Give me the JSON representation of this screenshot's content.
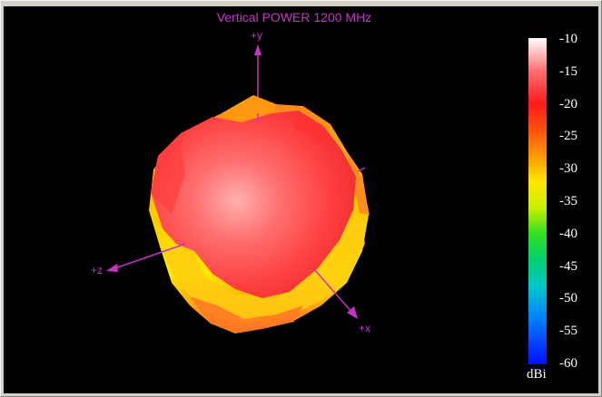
{
  "window": {
    "title": "Vertical POWER 1200  MHz"
  },
  "axes": {
    "y_label": "+y",
    "z_label": "+z",
    "x_label": "+x"
  },
  "colorbar": {
    "unit": "dBi",
    "ticks": [
      "-10",
      "-15",
      "-20",
      "-25",
      "-30",
      "-35",
      "-40",
      "-45",
      "-50",
      "-55",
      "-60"
    ],
    "max": -10,
    "min": -60
  },
  "colors": {
    "background": "#000000",
    "axis": "#c832c8",
    "surface_main": "#ff4c4c",
    "surface_highlight": "#ff9a9a",
    "surface_low": "#ffd400"
  }
}
